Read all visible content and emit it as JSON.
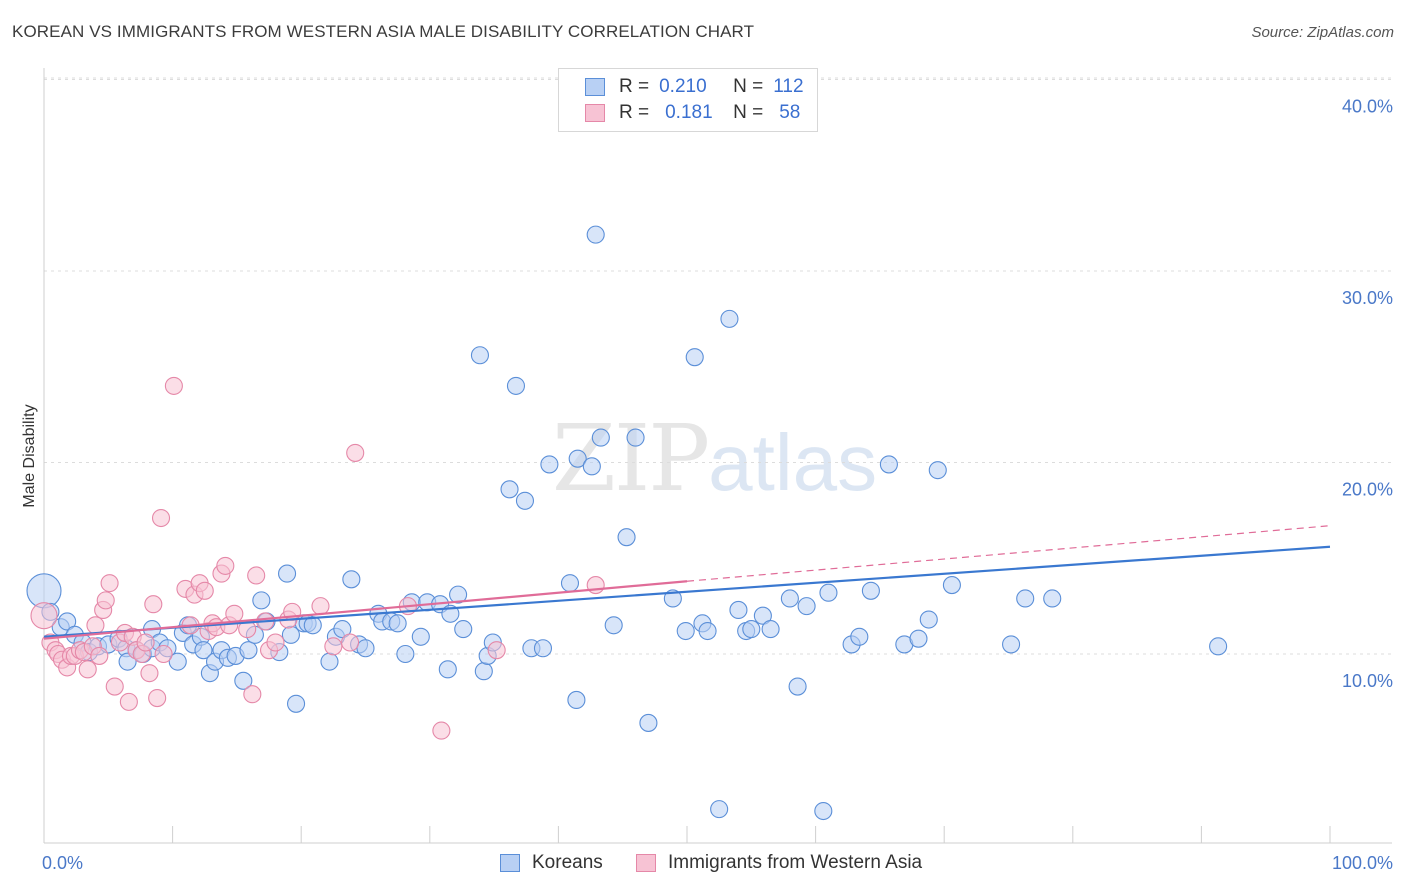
{
  "header": {
    "title": "KOREAN VS IMMIGRANTS FROM WESTERN ASIA MALE DISABILITY CORRELATION CHART",
    "source": "Source: ZipAtlas.com"
  },
  "watermark": {
    "zip": "ZIP",
    "atlas": "atlas"
  },
  "legend": {
    "rows": [
      {
        "r_label": "R =",
        "r_value": "0.210",
        "n_label": "N =",
        "n_value": "112"
      },
      {
        "r_label": "R =",
        "r_value": "0.181",
        "n_label": "N =",
        "n_value": "58"
      }
    ]
  },
  "bottom_legend": {
    "series1": "Koreans",
    "series2": "Immigrants from Western Asia"
  },
  "colors": {
    "koreans_fill": "#b8d0f4",
    "koreans_stroke": "#5b8fd8",
    "koreans_line": "#3a78d0",
    "western_asia_fill": "#f7c3d4",
    "western_asia_stroke": "#e588a8",
    "western_asia_line": "#e06c98",
    "tick_text": "#4a78c8",
    "grid": "#dcdcdc"
  },
  "chart_data": {
    "type": "scatter",
    "xlabel": "",
    "ylabel": "Male Disability",
    "xlim": [
      0,
      100
    ],
    "ylim": [
      0,
      42
    ],
    "x_tick_labels": [
      "0.0%",
      "100.0%"
    ],
    "y_ticks": [
      10,
      20,
      30,
      40
    ],
    "y_tick_labels": [
      "10.0%",
      "20.0%",
      "30.0%",
      "40.0%"
    ],
    "grid": "horizontal-dashed",
    "legend_placement": "top-center",
    "series": [
      {
        "name": "Koreans",
        "R": 0.21,
        "N": 112,
        "trend": {
          "x": [
            0,
            100
          ],
          "y": [
            10.9,
            15.6
          ],
          "dashed_extension": false
        },
        "points": [
          [
            0,
            13.3
          ],
          [
            0.5,
            12.2
          ],
          [
            1.3,
            11.4
          ],
          [
            1.8,
            11.7
          ],
          [
            2.4,
            11.0
          ],
          [
            3,
            10.6
          ],
          [
            3.5,
            10.1
          ],
          [
            4.2,
            10.4
          ],
          [
            5,
            10.5
          ],
          [
            5.8,
            10.8
          ],
          [
            6.4,
            10.3
          ],
          [
            6.5,
            9.6
          ],
          [
            7.2,
            10.2
          ],
          [
            7.7,
            10.0
          ],
          [
            8.4,
            10.3
          ],
          [
            8.4,
            11.3
          ],
          [
            9,
            10.6
          ],
          [
            9.6,
            10.3
          ],
          [
            10.4,
            9.6
          ],
          [
            10.8,
            11.1
          ],
          [
            11.2,
            11.5
          ],
          [
            11.6,
            10.5
          ],
          [
            12.2,
            10.9
          ],
          [
            12.4,
            10.2
          ],
          [
            12.9,
            9.0
          ],
          [
            13.3,
            9.6
          ],
          [
            13.8,
            10.2
          ],
          [
            14.3,
            9.8
          ],
          [
            14.9,
            9.9
          ],
          [
            15.5,
            8.6
          ],
          [
            15.9,
            10.2
          ],
          [
            16.4,
            11.0
          ],
          [
            16.9,
            12.8
          ],
          [
            17.3,
            11.7
          ],
          [
            18.3,
            10.1
          ],
          [
            18.9,
            14.2
          ],
          [
            19.2,
            11.0
          ],
          [
            19.6,
            7.4
          ],
          [
            20.2,
            11.6
          ],
          [
            20.5,
            11.6
          ],
          [
            20.9,
            11.5
          ],
          [
            22.2,
            9.6
          ],
          [
            22.7,
            10.9
          ],
          [
            23.2,
            11.3
          ],
          [
            23.9,
            13.9
          ],
          [
            24.5,
            10.5
          ],
          [
            25,
            10.3
          ],
          [
            26,
            12.1
          ],
          [
            26.3,
            11.7
          ],
          [
            27,
            11.7
          ],
          [
            27.5,
            11.6
          ],
          [
            28.1,
            10.0
          ],
          [
            28.6,
            12.7
          ],
          [
            29.3,
            10.9
          ],
          [
            29.8,
            12.7
          ],
          [
            30.8,
            12.6
          ],
          [
            31.4,
            9.2
          ],
          [
            31.6,
            12.1
          ],
          [
            32.2,
            13.1
          ],
          [
            32.6,
            11.3
          ],
          [
            33.9,
            25.6
          ],
          [
            34.2,
            9.1
          ],
          [
            34.5,
            9.9
          ],
          [
            34.9,
            10.6
          ],
          [
            36.2,
            18.6
          ],
          [
            36.7,
            24.0
          ],
          [
            37.4,
            18.0
          ],
          [
            37.9,
            10.3
          ],
          [
            38.8,
            10.3
          ],
          [
            39.3,
            19.9
          ],
          [
            40.9,
            13.7
          ],
          [
            41.4,
            7.6
          ],
          [
            41.5,
            20.2
          ],
          [
            42.6,
            19.8
          ],
          [
            42.9,
            31.9
          ],
          [
            43.3,
            21.3
          ],
          [
            44.3,
            11.5
          ],
          [
            45.3,
            16.1
          ],
          [
            46,
            21.3
          ],
          [
            47,
            6.4
          ],
          [
            48.9,
            12.9
          ],
          [
            49.9,
            11.2
          ],
          [
            50.6,
            25.5
          ],
          [
            51.2,
            11.6
          ],
          [
            51.6,
            11.2
          ],
          [
            52.5,
            1.9
          ],
          [
            53.3,
            27.5
          ],
          [
            54,
            12.3
          ],
          [
            54.6,
            11.2
          ],
          [
            55,
            11.3
          ],
          [
            55.9,
            12.0
          ],
          [
            56.5,
            11.3
          ],
          [
            58,
            12.9
          ],
          [
            58.6,
            8.3
          ],
          [
            59.3,
            12.5
          ],
          [
            60.6,
            1.8
          ],
          [
            61,
            13.2
          ],
          [
            62.8,
            10.5
          ],
          [
            63.4,
            10.9
          ],
          [
            64.3,
            13.3
          ],
          [
            65.7,
            19.9
          ],
          [
            66.9,
            10.5
          ],
          [
            68,
            10.8
          ],
          [
            68.8,
            11.8
          ],
          [
            69.5,
            19.6
          ],
          [
            70.6,
            13.6
          ],
          [
            75.2,
            10.5
          ],
          [
            76.3,
            12.9
          ],
          [
            78.4,
            12.9
          ],
          [
            91.3,
            10.4
          ]
        ]
      },
      {
        "name": "Immigrants from Western Asia",
        "R": 0.181,
        "N": 58,
        "trend": {
          "x": [
            0,
            50
          ],
          "y": [
            10.8,
            13.8
          ],
          "dashed_extension_to": [
            100,
            16.7
          ]
        },
        "points": [
          [
            0,
            12.0
          ],
          [
            0.5,
            10.6
          ],
          [
            0.9,
            10.2
          ],
          [
            1.1,
            10.0
          ],
          [
            1.4,
            9.7
          ],
          [
            1.8,
            9.3
          ],
          [
            2.1,
            9.9
          ],
          [
            2.4,
            9.9
          ],
          [
            2.8,
            10.2
          ],
          [
            3.1,
            10.1
          ],
          [
            3.4,
            9.2
          ],
          [
            3.8,
            10.4
          ],
          [
            4,
            11.5
          ],
          [
            4.3,
            9.9
          ],
          [
            4.6,
            12.3
          ],
          [
            4.8,
            12.8
          ],
          [
            5.1,
            13.7
          ],
          [
            5.5,
            8.3
          ],
          [
            5.9,
            10.6
          ],
          [
            6.3,
            11.1
          ],
          [
            6.6,
            7.5
          ],
          [
            6.9,
            10.9
          ],
          [
            7.2,
            10.2
          ],
          [
            7.6,
            10.0
          ],
          [
            7.9,
            10.6
          ],
          [
            8.2,
            9.0
          ],
          [
            8.5,
            12.6
          ],
          [
            8.8,
            7.7
          ],
          [
            9.1,
            17.1
          ],
          [
            9.3,
            10.0
          ],
          [
            10.1,
            24.0
          ],
          [
            11,
            13.4
          ],
          [
            11.4,
            11.5
          ],
          [
            11.7,
            13.1
          ],
          [
            12.1,
            13.7
          ],
          [
            12.5,
            13.3
          ],
          [
            12.8,
            11.2
          ],
          [
            13.1,
            11.6
          ],
          [
            13.4,
            11.4
          ],
          [
            13.8,
            14.2
          ],
          [
            14.1,
            14.6
          ],
          [
            14.4,
            11.5
          ],
          [
            14.8,
            12.1
          ],
          [
            15.8,
            11.3
          ],
          [
            16.2,
            7.9
          ],
          [
            16.5,
            14.1
          ],
          [
            17.2,
            11.7
          ],
          [
            17.5,
            10.2
          ],
          [
            18,
            10.6
          ],
          [
            19,
            11.8
          ],
          [
            19.3,
            12.2
          ],
          [
            21.5,
            12.5
          ],
          [
            22.5,
            10.4
          ],
          [
            23.8,
            10.6
          ],
          [
            24.2,
            20.5
          ],
          [
            28.3,
            12.5
          ],
          [
            30.9,
            6.0
          ],
          [
            35.2,
            10.2
          ],
          [
            42.9,
            13.6
          ]
        ]
      }
    ]
  }
}
